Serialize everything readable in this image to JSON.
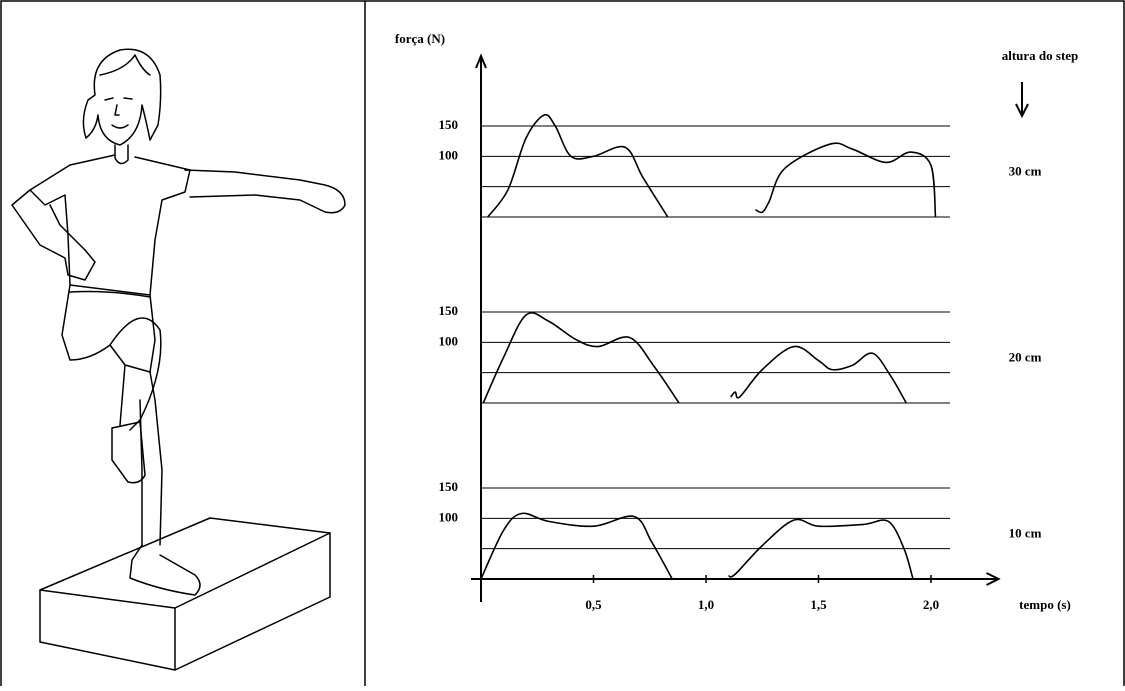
{
  "chart_data": [
    {
      "type": "line",
      "label": "30 cm",
      "ylabel": "força (N)",
      "annotation": "altura do step",
      "xlim": [
        0,
        2.3
      ],
      "ylim": [
        0,
        150
      ],
      "yticks": [
        100,
        150
      ],
      "minor_gridlines": [
        0,
        50
      ],
      "color": "#000000",
      "x": [
        0.03,
        0.12,
        0.2,
        0.28,
        0.33,
        0.4,
        0.5,
        0.64,
        0.72,
        0.83,
        1.0,
        1.22,
        1.25,
        1.28,
        1.35,
        1.55,
        1.65,
        1.8,
        1.91,
        2.0,
        2.02
      ],
      "values": [
        0,
        45,
        130,
        168,
        150,
        100,
        100,
        115,
        65,
        0,
        null,
        12,
        8,
        25,
        80,
        120,
        112,
        90,
        107,
        85,
        0
      ]
    },
    {
      "type": "line",
      "label": "20 cm",
      "xlim": [
        0,
        2.3
      ],
      "ylim": [
        0,
        150
      ],
      "yticks": [
        100,
        150
      ],
      "minor_gridlines": [
        0,
        50
      ],
      "color": "#000000",
      "x": [
        0.01,
        0.1,
        0.2,
        0.3,
        0.42,
        0.52,
        0.66,
        0.77,
        0.88,
        1.0,
        1.11,
        1.13,
        1.15,
        1.25,
        1.39,
        1.5,
        1.56,
        1.65,
        1.74,
        1.82,
        1.89
      ],
      "values": [
        0,
        75,
        145,
        135,
        105,
        93,
        108,
        60,
        0,
        null,
        10,
        18,
        10,
        55,
        93,
        70,
        55,
        62,
        82,
        45,
        0
      ]
    },
    {
      "type": "line",
      "label": "10 cm",
      "xlabel": "tempo (s)",
      "xlim": [
        0,
        2.3
      ],
      "ylim": [
        0,
        150
      ],
      "yticks": [
        100,
        150
      ],
      "minor_gridlines": [
        0,
        50
      ],
      "color": "#000000",
      "xticks": [
        {
          "value": 0.5,
          "label": "0,5"
        },
        {
          "value": 1.0,
          "label": "1,0"
        },
        {
          "value": 1.5,
          "label": "1,5"
        },
        {
          "value": 2.0,
          "label": "2,0"
        }
      ],
      "x": [
        0,
        0.1,
        0.18,
        0.3,
        0.5,
        0.68,
        0.76,
        0.85,
        1.0,
        1.1,
        1.13,
        1.25,
        1.39,
        1.5,
        1.7,
        1.81,
        1.88,
        1.92
      ],
      "values": [
        0,
        80,
        108,
        95,
        87,
        103,
        60,
        0,
        null,
        5,
        8,
        55,
        97,
        87,
        90,
        95,
        50,
        0
      ]
    }
  ]
}
